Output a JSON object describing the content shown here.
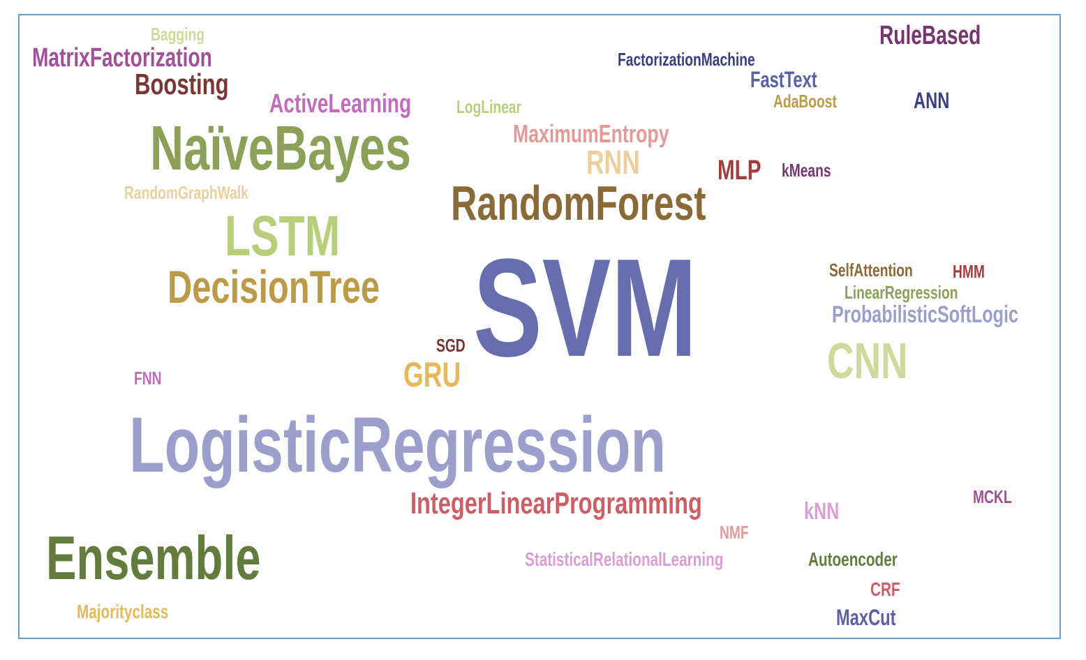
{
  "words": [
    {
      "text": "SVM",
      "color": "#666eae"
    },
    {
      "text": "LogisticRegression",
      "color": "#9c9fcc"
    },
    {
      "text": "NaïveBayes",
      "color": "#8ca058"
    },
    {
      "text": "RandomForest",
      "color": "#8a6a37"
    },
    {
      "text": "Ensemble",
      "color": "#637b3c"
    },
    {
      "text": "LSTM",
      "color": "#b9ce7a"
    },
    {
      "text": "DecisionTree",
      "color": "#bd9a47"
    },
    {
      "text": "CNN",
      "color": "#cfd99c"
    },
    {
      "text": "IntegerLinearProgramming",
      "color": "#cc5e66"
    },
    {
      "text": "GRU",
      "color": "#e4b95a"
    },
    {
      "text": "MatrixFactorization",
      "color": "#a24f99"
    },
    {
      "text": "Boosting",
      "color": "#7a3635"
    },
    {
      "text": "RuleBased",
      "color": "#76356f"
    },
    {
      "text": "ActiveLearning",
      "color": "#c36cbb"
    },
    {
      "text": "MaximumEntropy",
      "color": "#e39a98"
    },
    {
      "text": "RNN",
      "color": "#eccf9f"
    },
    {
      "text": "MLP",
      "color": "#a33c3c"
    },
    {
      "text": "FastText",
      "color": "#5a62a6"
    },
    {
      "text": "ANN",
      "color": "#393f80"
    },
    {
      "text": "ProbabilisticSoftLogic",
      "color": "#9c9fcc"
    },
    {
      "text": "FactorizationMachine",
      "color": "#393f80"
    },
    {
      "text": "AdaBoost",
      "color": "#bd9a47"
    },
    {
      "text": "LogLinear",
      "color": "#b9ce7a"
    },
    {
      "text": "kMeans",
      "color": "#76356f"
    },
    {
      "text": "RandomGraphWalk",
      "color": "#eccf9f"
    },
    {
      "text": "Bagging",
      "color": "#cfd99c"
    },
    {
      "text": "SelfAttention",
      "color": "#8a6a37"
    },
    {
      "text": "HMM",
      "color": "#a33c3c"
    },
    {
      "text": "LinearRegression",
      "color": "#8ca058"
    },
    {
      "text": "SGD",
      "color": "#7a3635"
    },
    {
      "text": "FNN",
      "color": "#c36cbb"
    },
    {
      "text": "kNN",
      "color": "#d99fd4"
    },
    {
      "text": "NMF",
      "color": "#e39a98"
    },
    {
      "text": "StatisticalRelationalLearning",
      "color": "#d99fd4"
    },
    {
      "text": "Autoencoder",
      "color": "#637b3c"
    },
    {
      "text": "MCKL",
      "color": "#a24f99"
    },
    {
      "text": "CRF",
      "color": "#cc5e66"
    },
    {
      "text": "MaxCut",
      "color": "#5a62a6"
    },
    {
      "text": "Majorityclass",
      "color": "#e4b95a"
    }
  ]
}
